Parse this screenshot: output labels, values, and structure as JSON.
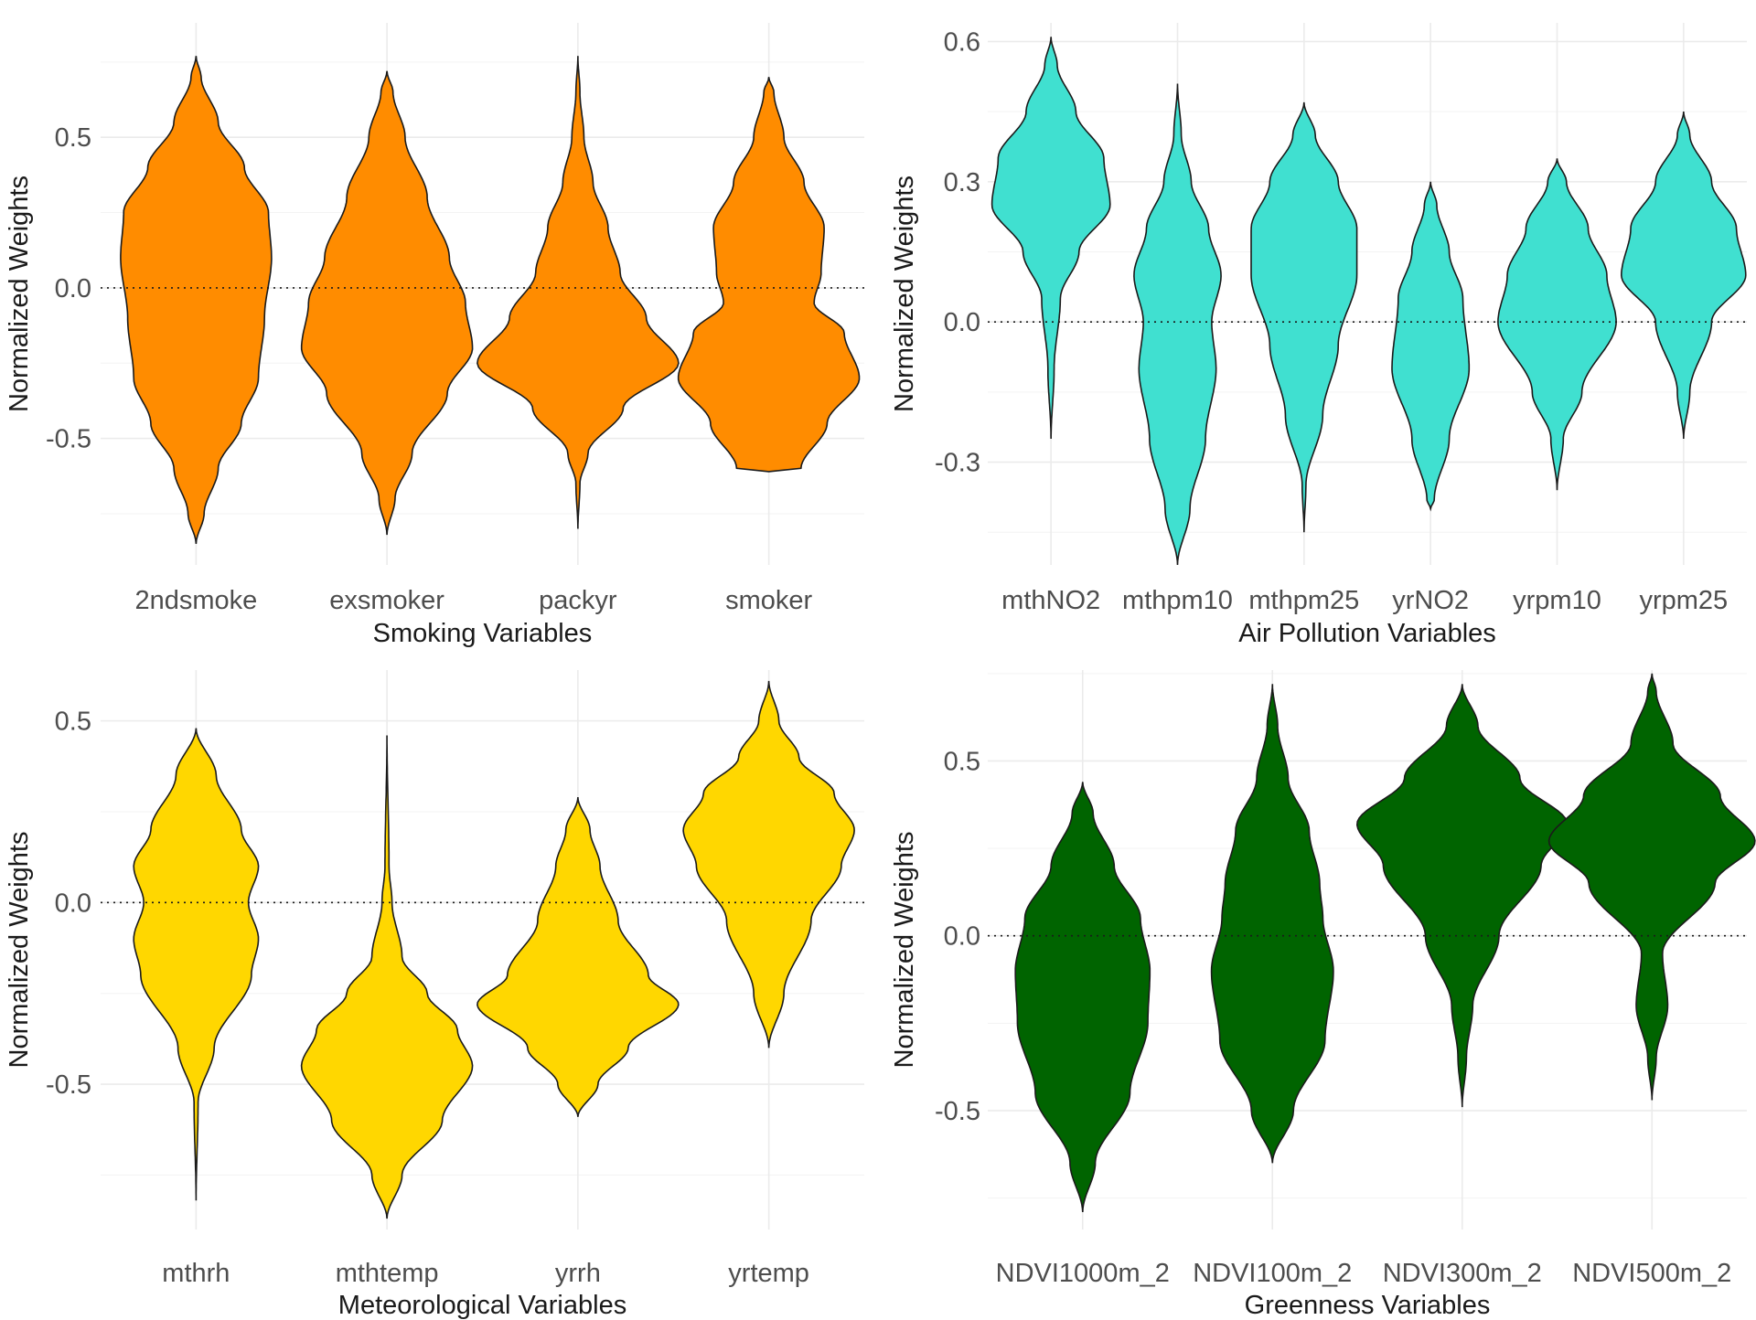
{
  "chart_data": [
    {
      "type": "violin",
      "xlabel": "Smoking Variables",
      "ylabel": "Normalized Weights",
      "categories": [
        "2ndsmoke",
        "exsmoker",
        "packyr",
        "smoker"
      ],
      "yticks": [
        -0.5,
        0.0,
        0.5
      ],
      "ytick_labels": [
        "-0.5",
        "0.0",
        "0.5"
      ],
      "ylim": [
        -0.92,
        0.88
      ],
      "grid": true,
      "reference_line": 0,
      "fill": "#FF8C00",
      "series": [
        {
          "category": "2ndsmoke",
          "min": -0.85,
          "max": 0.77,
          "profile": [
            [
              -0.85,
              0.0
            ],
            [
              -0.75,
              0.08
            ],
            [
              -0.6,
              0.22
            ],
            [
              -0.45,
              0.45
            ],
            [
              -0.3,
              0.62
            ],
            [
              -0.1,
              0.68
            ],
            [
              0.1,
              0.75
            ],
            [
              0.25,
              0.72
            ],
            [
              0.4,
              0.48
            ],
            [
              0.55,
              0.22
            ],
            [
              0.7,
              0.05
            ],
            [
              0.77,
              0.0
            ]
          ]
        },
        {
          "category": "exsmoker",
          "min": -0.82,
          "max": 0.72,
          "profile": [
            [
              -0.82,
              0.0
            ],
            [
              -0.7,
              0.08
            ],
            [
              -0.55,
              0.25
            ],
            [
              -0.35,
              0.6
            ],
            [
              -0.2,
              0.85
            ],
            [
              -0.05,
              0.78
            ],
            [
              0.1,
              0.62
            ],
            [
              0.3,
              0.4
            ],
            [
              0.5,
              0.18
            ],
            [
              0.65,
              0.06
            ],
            [
              0.72,
              0.0
            ]
          ]
        },
        {
          "category": "packyr",
          "min": -0.8,
          "max": 0.77,
          "profile": [
            [
              -0.8,
              0.0
            ],
            [
              -0.65,
              0.02
            ],
            [
              -0.55,
              0.1
            ],
            [
              -0.4,
              0.45
            ],
            [
              -0.25,
              1.0
            ],
            [
              -0.1,
              0.68
            ],
            [
              0.05,
              0.42
            ],
            [
              0.2,
              0.3
            ],
            [
              0.35,
              0.15
            ],
            [
              0.5,
              0.06
            ],
            [
              0.65,
              0.02
            ],
            [
              0.77,
              0.0
            ]
          ]
        },
        {
          "category": "smoker",
          "min": -0.61,
          "max": 0.7,
          "profile": [
            [
              -0.61,
              0.0
            ],
            [
              -0.6,
              0.32
            ],
            [
              -0.45,
              0.58
            ],
            [
              -0.3,
              0.9
            ],
            [
              -0.15,
              0.75
            ],
            [
              -0.05,
              0.45
            ],
            [
              0.05,
              0.52
            ],
            [
              0.2,
              0.55
            ],
            [
              0.35,
              0.35
            ],
            [
              0.5,
              0.15
            ],
            [
              0.65,
              0.05
            ],
            [
              0.7,
              0.0
            ]
          ]
        }
      ]
    },
    {
      "type": "violin",
      "xlabel": "Air Pollution Variables",
      "ylabel": "Normalized Weights",
      "categories": [
        "mthNO2",
        "mthpm10",
        "mthpm25",
        "yrNO2",
        "yrpm10",
        "yrpm25"
      ],
      "yticks": [
        -0.3,
        0.0,
        0.3,
        0.6
      ],
      "ytick_labels": [
        "-0.3",
        "0.0",
        "0.3",
        "0.6"
      ],
      "ylim": [
        -0.52,
        0.64
      ],
      "grid": true,
      "reference_line": 0,
      "fill": "#40E0D0",
      "series": [
        {
          "category": "mthNO2",
          "min": -0.25,
          "max": 0.61,
          "profile": [
            [
              -0.25,
              0.0
            ],
            [
              -0.1,
              0.05
            ],
            [
              0.05,
              0.15
            ],
            [
              0.15,
              0.45
            ],
            [
              0.25,
              0.95
            ],
            [
              0.35,
              0.85
            ],
            [
              0.45,
              0.4
            ],
            [
              0.55,
              0.1
            ],
            [
              0.61,
              0.0
            ]
          ]
        },
        {
          "category": "mthpm10",
          "min": -0.52,
          "max": 0.51,
          "profile": [
            [
              -0.52,
              0.0
            ],
            [
              -0.4,
              0.2
            ],
            [
              -0.25,
              0.45
            ],
            [
              -0.1,
              0.62
            ],
            [
              0.0,
              0.55
            ],
            [
              0.1,
              0.7
            ],
            [
              0.2,
              0.5
            ],
            [
              0.3,
              0.22
            ],
            [
              0.4,
              0.06
            ],
            [
              0.51,
              0.0
            ]
          ]
        },
        {
          "category": "mthpm25",
          "min": -0.45,
          "max": 0.47,
          "profile": [
            [
              -0.45,
              0.0
            ],
            [
              -0.35,
              0.03
            ],
            [
              -0.2,
              0.3
            ],
            [
              -0.05,
              0.55
            ],
            [
              0.1,
              0.85
            ],
            [
              0.2,
              0.85
            ],
            [
              0.3,
              0.55
            ],
            [
              0.4,
              0.18
            ],
            [
              0.47,
              0.0
            ]
          ]
        },
        {
          "category": "yrNO2",
          "min": -0.4,
          "max": 0.3,
          "profile": [
            [
              -0.4,
              0.0
            ],
            [
              -0.38,
              0.06
            ],
            [
              -0.25,
              0.3
            ],
            [
              -0.1,
              0.62
            ],
            [
              0.05,
              0.52
            ],
            [
              0.15,
              0.3
            ],
            [
              0.25,
              0.1
            ],
            [
              0.3,
              0.0
            ]
          ]
        },
        {
          "category": "yrpm10",
          "min": -0.36,
          "max": 0.35,
          "profile": [
            [
              -0.36,
              0.0
            ],
            [
              -0.25,
              0.1
            ],
            [
              -0.15,
              0.4
            ],
            [
              0.0,
              0.95
            ],
            [
              0.1,
              0.8
            ],
            [
              0.2,
              0.5
            ],
            [
              0.3,
              0.15
            ],
            [
              0.35,
              0.0
            ]
          ]
        },
        {
          "category": "yrpm25",
          "min": -0.25,
          "max": 0.45,
          "profile": [
            [
              -0.25,
              0.0
            ],
            [
              -0.15,
              0.1
            ],
            [
              0.0,
              0.45
            ],
            [
              0.1,
              1.0
            ],
            [
              0.2,
              0.85
            ],
            [
              0.3,
              0.45
            ],
            [
              0.4,
              0.1
            ],
            [
              0.45,
              0.0
            ]
          ]
        }
      ]
    },
    {
      "type": "violin",
      "xlabel": "Meteorological Variables",
      "ylabel": "Normalized Weights",
      "categories": [
        "mthrh",
        "mthtemp",
        "yrrh",
        "yrtemp"
      ],
      "yticks": [
        -0.5,
        0.0,
        0.5
      ],
      "ytick_labels": [
        "-0.5",
        "0.0",
        "0.5"
      ],
      "ylim": [
        -0.9,
        0.64
      ],
      "grid": true,
      "reference_line": 0,
      "fill": "#FFD700",
      "series": [
        {
          "category": "mthrh",
          "min": -0.82,
          "max": 0.48,
          "profile": [
            [
              -0.82,
              0.0
            ],
            [
              -0.55,
              0.02
            ],
            [
              -0.4,
              0.18
            ],
            [
              -0.2,
              0.55
            ],
            [
              -0.1,
              0.62
            ],
            [
              0.0,
              0.52
            ],
            [
              0.1,
              0.62
            ],
            [
              0.2,
              0.45
            ],
            [
              0.35,
              0.2
            ],
            [
              0.48,
              0.0
            ]
          ]
        },
        {
          "category": "mthtemp",
          "min": -0.87,
          "max": 0.46,
          "profile": [
            [
              -0.87,
              0.0
            ],
            [
              -0.75,
              0.15
            ],
            [
              -0.6,
              0.55
            ],
            [
              -0.45,
              0.85
            ],
            [
              -0.35,
              0.7
            ],
            [
              -0.25,
              0.4
            ],
            [
              -0.15,
              0.15
            ],
            [
              0.0,
              0.05
            ],
            [
              0.1,
              0.02
            ],
            [
              0.46,
              0.0
            ]
          ]
        },
        {
          "category": "yrrh",
          "min": -0.59,
          "max": 0.29,
          "profile": [
            [
              -0.59,
              0.0
            ],
            [
              -0.5,
              0.2
            ],
            [
              -0.4,
              0.5
            ],
            [
              -0.28,
              1.0
            ],
            [
              -0.2,
              0.7
            ],
            [
              -0.05,
              0.4
            ],
            [
              0.1,
              0.22
            ],
            [
              0.2,
              0.12
            ],
            [
              0.29,
              0.0
            ]
          ]
        },
        {
          "category": "yrtemp",
          "min": -0.4,
          "max": 0.61,
          "profile": [
            [
              -0.4,
              0.0
            ],
            [
              -0.25,
              0.15
            ],
            [
              -0.05,
              0.42
            ],
            [
              0.1,
              0.72
            ],
            [
              0.2,
              0.85
            ],
            [
              0.3,
              0.65
            ],
            [
              0.4,
              0.3
            ],
            [
              0.5,
              0.1
            ],
            [
              0.61,
              0.0
            ]
          ]
        }
      ]
    },
    {
      "type": "violin",
      "xlabel": "Greenness Variables",
      "ylabel": "Normalized Weights",
      "categories": [
        "NDVI1000m_2",
        "NDVI100m_2",
        "NDVI300m_2",
        "NDVI500m_2"
      ],
      "yticks": [
        -0.5,
        0.0,
        0.5
      ],
      "ytick_labels": [
        "-0.5",
        "0.0",
        "0.5"
      ],
      "ylim": [
        -0.84,
        0.76
      ],
      "grid": true,
      "reference_line": 0,
      "fill": "#006400",
      "series": [
        {
          "category": "NDVI1000m_2",
          "min": -0.79,
          "max": 0.44,
          "profile": [
            [
              -0.79,
              0.0
            ],
            [
              -0.65,
              0.12
            ],
            [
              -0.45,
              0.45
            ],
            [
              -0.25,
              0.62
            ],
            [
              -0.1,
              0.64
            ],
            [
              0.05,
              0.55
            ],
            [
              0.2,
              0.3
            ],
            [
              0.35,
              0.1
            ],
            [
              0.44,
              0.0
            ]
          ]
        },
        {
          "category": "NDVI100m_2",
          "min": -0.65,
          "max": 0.72,
          "profile": [
            [
              -0.65,
              0.0
            ],
            [
              -0.5,
              0.2
            ],
            [
              -0.3,
              0.5
            ],
            [
              -0.1,
              0.58
            ],
            [
              0.05,
              0.48
            ],
            [
              0.15,
              0.45
            ],
            [
              0.3,
              0.35
            ],
            [
              0.45,
              0.15
            ],
            [
              0.6,
              0.05
            ],
            [
              0.72,
              0.0
            ]
          ]
        },
        {
          "category": "NDVI300m_2",
          "min": -0.49,
          "max": 0.72,
          "profile": [
            [
              -0.49,
              0.0
            ],
            [
              -0.35,
              0.04
            ],
            [
              -0.2,
              0.1
            ],
            [
              0.0,
              0.35
            ],
            [
              0.2,
              0.75
            ],
            [
              0.32,
              1.0
            ],
            [
              0.45,
              0.55
            ],
            [
              0.6,
              0.15
            ],
            [
              0.72,
              0.0
            ]
          ]
        },
        {
          "category": "NDVI500m_2",
          "min": -0.47,
          "max": 0.75,
          "profile": [
            [
              -0.47,
              0.0
            ],
            [
              -0.35,
              0.04
            ],
            [
              -0.2,
              0.15
            ],
            [
              -0.05,
              0.1
            ],
            [
              0.15,
              0.6
            ],
            [
              0.27,
              0.98
            ],
            [
              0.4,
              0.65
            ],
            [
              0.55,
              0.2
            ],
            [
              0.7,
              0.04
            ],
            [
              0.75,
              0.0
            ]
          ]
        }
      ]
    }
  ]
}
